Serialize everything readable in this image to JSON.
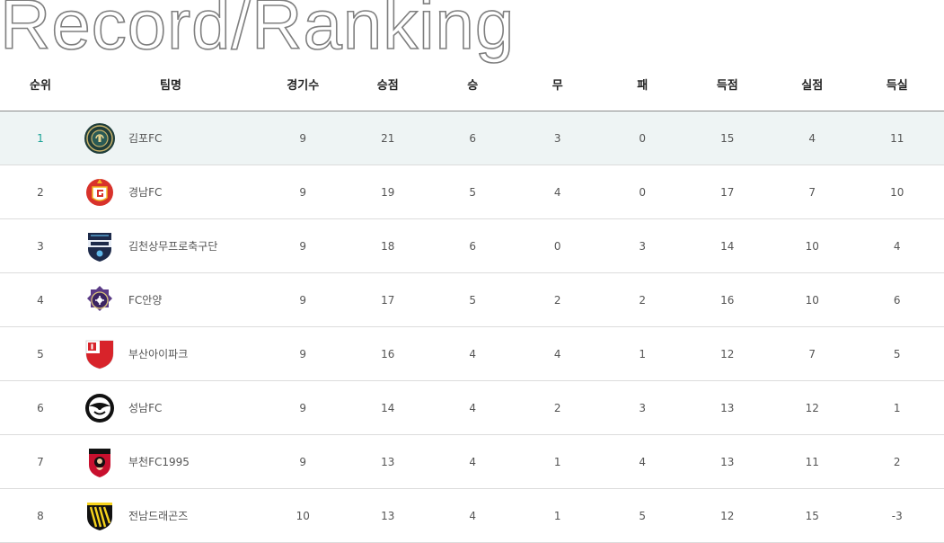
{
  "title": "Record/Ranking",
  "headers": {
    "rank": "순위",
    "team": "팀명",
    "games": "경기수",
    "points": "승점",
    "wins": "승",
    "draws": "무",
    "losses": "패",
    "goals_for": "득점",
    "goals_against": "실점",
    "goal_diff": "득실"
  },
  "rows": [
    {
      "rank": "1",
      "team": "김포FC",
      "logo": "gimpo-fc-logo-icon",
      "games": "9",
      "points": "21",
      "wins": "6",
      "draws": "3",
      "losses": "0",
      "goals_for": "15",
      "goals_against": "4",
      "goal_diff": "11"
    },
    {
      "rank": "2",
      "team": "경남FC",
      "logo": "gyeongnam-fc-logo-icon",
      "games": "9",
      "points": "19",
      "wins": "5",
      "draws": "4",
      "losses": "0",
      "goals_for": "17",
      "goals_against": "7",
      "goal_diff": "10"
    },
    {
      "rank": "3",
      "team": "김천상무프로축구단",
      "logo": "gimcheon-sangmu-logo-icon",
      "games": "9",
      "points": "18",
      "wins": "6",
      "draws": "0",
      "losses": "3",
      "goals_for": "14",
      "goals_against": "10",
      "goal_diff": "4"
    },
    {
      "rank": "4",
      "team": "FC안양",
      "logo": "fc-anyang-logo-icon",
      "games": "9",
      "points": "17",
      "wins": "5",
      "draws": "2",
      "losses": "2",
      "goals_for": "16",
      "goals_against": "10",
      "goal_diff": "6"
    },
    {
      "rank": "5",
      "team": "부산아이파크",
      "logo": "busan-ipark-logo-icon",
      "games": "9",
      "points": "16",
      "wins": "4",
      "draws": "4",
      "losses": "1",
      "goals_for": "12",
      "goals_against": "7",
      "goal_diff": "5"
    },
    {
      "rank": "6",
      "team": "성남FC",
      "logo": "seongnam-fc-logo-icon",
      "games": "9",
      "points": "14",
      "wins": "4",
      "draws": "2",
      "losses": "3",
      "goals_for": "13",
      "goals_against": "12",
      "goal_diff": "1"
    },
    {
      "rank": "7",
      "team": "부천FC1995",
      "logo": "bucheon-fc-logo-icon",
      "games": "9",
      "points": "13",
      "wins": "4",
      "draws": "1",
      "losses": "4",
      "goals_for": "13",
      "goals_against": "11",
      "goal_diff": "2"
    },
    {
      "rank": "8",
      "team": "전남드래곤즈",
      "logo": "jeonnam-dragons-logo-icon",
      "games": "10",
      "points": "13",
      "wins": "4",
      "draws": "1",
      "losses": "5",
      "goals_for": "12",
      "goals_against": "15",
      "goal_diff": "-3"
    }
  ],
  "colors": {
    "highlight_row": "#eef4f4",
    "rank_accent": "#1aa396",
    "title_outline": "#7f7f7f"
  }
}
